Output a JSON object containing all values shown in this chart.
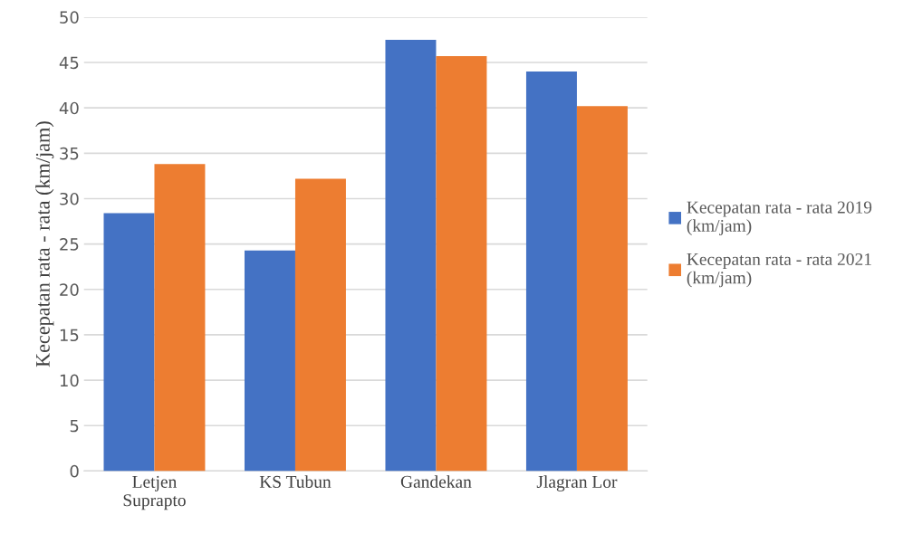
{
  "chart_data": {
    "type": "bar",
    "ylabel": "Kecepatan rata - rata (km/jam)",
    "categories": [
      "Letjen\nSuprapto",
      "KS Tubun",
      "Gandekan",
      "Jlagran Lor"
    ],
    "series": [
      {
        "name": "Kecepatan rata - rata 2019\n(km/jam)",
        "color": "#4472c4",
        "values": [
          28.4,
          24.3,
          47.5,
          44.0
        ]
      },
      {
        "name": "Kecepatan rata - rata 2021\n(km/jam)",
        "color": "#ed7d31",
        "values": [
          33.8,
          32.2,
          45.7,
          40.2
        ]
      }
    ],
    "ylim": [
      0,
      50
    ],
    "yticks": [
      0,
      5,
      10,
      15,
      20,
      25,
      30,
      35,
      40,
      45,
      50
    ],
    "grid": "y",
    "legend": "right"
  }
}
